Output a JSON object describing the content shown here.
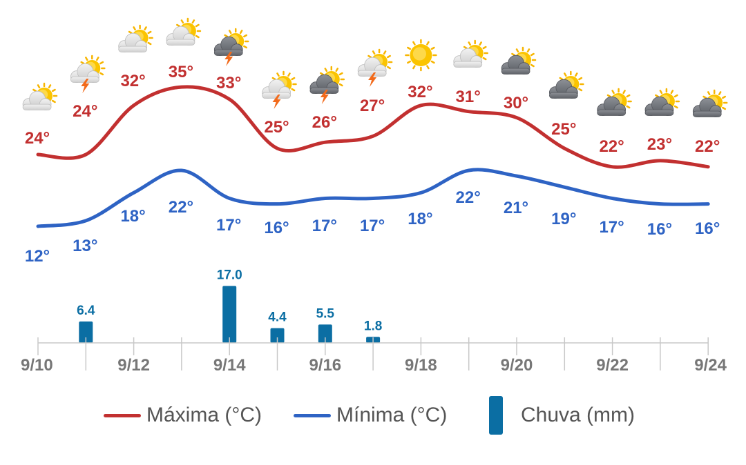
{
  "chart_data": {
    "type": "line",
    "x": [
      "9/10",
      "9/11",
      "9/12",
      "9/13",
      "9/14",
      "9/15",
      "9/16",
      "9/17",
      "9/18",
      "9/19",
      "9/20",
      "9/21",
      "9/22",
      "9/23",
      "9/24"
    ],
    "tick_labels": [
      "9/10",
      "9/12",
      "9/14",
      "9/16",
      "9/18",
      "9/20",
      "9/22",
      "9/24"
    ],
    "series": [
      {
        "name": "Máxima (°C)",
        "kind": "line",
        "color": "#c23030",
        "values": [
          24,
          24,
          32,
          35,
          33,
          25,
          26,
          27,
          32,
          31,
          30,
          25,
          22,
          23,
          22
        ],
        "labels": [
          "24°",
          "24°",
          "32°",
          "35°",
          "33°",
          "25°",
          "26°",
          "27°",
          "32°",
          "31°",
          "30°",
          "25°",
          "22°",
          "23°",
          "22°"
        ]
      },
      {
        "name": "Mínima (°C)",
        "kind": "line",
        "color": "#2e63c4",
        "values": [
          12,
          13,
          18,
          22,
          17,
          16,
          17,
          17,
          18,
          22,
          21,
          19,
          17,
          16,
          16
        ],
        "labels": [
          "12°",
          "13°",
          "18°",
          "22°",
          "17°",
          "16°",
          "17°",
          "17°",
          "18°",
          "22°",
          "21°",
          "19°",
          "17°",
          "16°",
          "16°"
        ]
      },
      {
        "name": "Chuva (mm)",
        "kind": "bar",
        "color": "#0b6ea3",
        "values": [
          null,
          6.4,
          null,
          null,
          17.0,
          4.4,
          5.5,
          1.8,
          null,
          null,
          null,
          null,
          null,
          null,
          null
        ],
        "labels": [
          "",
          "6.4",
          "",
          "",
          "17.0",
          "4.4",
          "5.5",
          "1.8",
          "",
          "",
          "",
          "",
          "",
          "",
          ""
        ]
      }
    ],
    "icons": [
      "partly-cloudy-icon",
      "sun-cloud-storm-icon",
      "partly-cloudy-icon",
      "partly-cloudy-icon",
      "sun-dark-cloud-storm-icon",
      "sun-cloud-storm-icon",
      "sun-dark-cloud-storm-icon",
      "sun-cloud-storm-icon",
      "sun-icon",
      "partly-cloudy-icon",
      "sun-dark-cloud-icon",
      "sun-dark-cloud-icon",
      "sun-dark-cloud-icon",
      "sun-dark-cloud-icon",
      "sun-dark-cloud-icon"
    ],
    "legend_position": "bottom",
    "grid": false
  },
  "legend": [
    {
      "label": "Máxima (°C)",
      "color": "#c23030"
    },
    {
      "label": "Mínima (°C)",
      "color": "#2e63c4"
    },
    {
      "label": "Chuva (mm)",
      "color": "#0b6ea3"
    }
  ]
}
